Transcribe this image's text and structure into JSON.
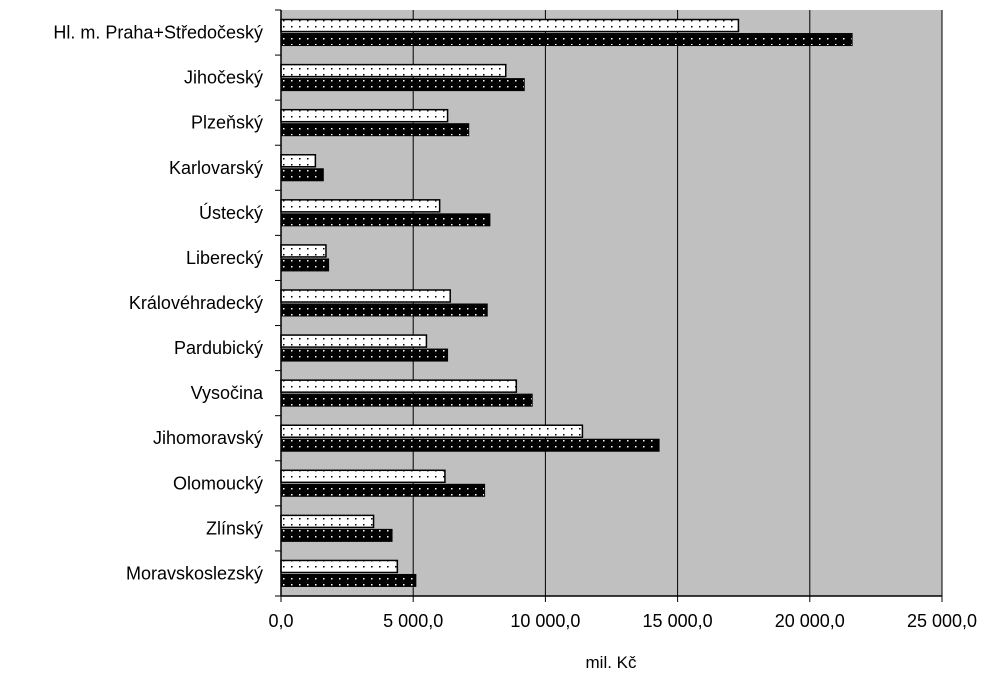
{
  "chart_data": {
    "type": "bar",
    "orientation": "horizontal",
    "xlabel": "mil. Kč",
    "ylabel": "",
    "xlim": [
      0,
      25000
    ],
    "x_ticks": [
      0,
      5000,
      10000,
      15000,
      20000,
      25000
    ],
    "x_tick_labels": [
      "0,0",
      "5 000,0",
      "10 000,0",
      "15 000,0",
      "20 000,0",
      "25 000,0"
    ],
    "grid": "vertical major gridlines",
    "legend": "none",
    "categories": [
      "Hl. m. Praha+Středočeský",
      "Jihočeský",
      "Plzeňský",
      "Karlovarský",
      "Ústecký",
      "Liberecký",
      "Královéhradecký",
      "Pardubický",
      "Vysočina",
      "Jihomoravský",
      "Olomoucký",
      "Zlínský",
      "Moravskoslezský"
    ],
    "series": [
      {
        "values": [
          17300,
          8500,
          6300,
          1300,
          6000,
          1700,
          6400,
          5500,
          8900,
          11400,
          6200,
          3500,
          4400
        ]
      },
      {
        "values": [
          21600,
          9200,
          7100,
          1600,
          7900,
          1800,
          7800,
          6300,
          9500,
          14300,
          7700,
          4200,
          5100
        ]
      }
    ],
    "colors": {
      "plot_background": "#c0c0c0",
      "series1_fill": "#ffffff",
      "series2_fill": "#000000",
      "gridline": "#000000"
    }
  }
}
